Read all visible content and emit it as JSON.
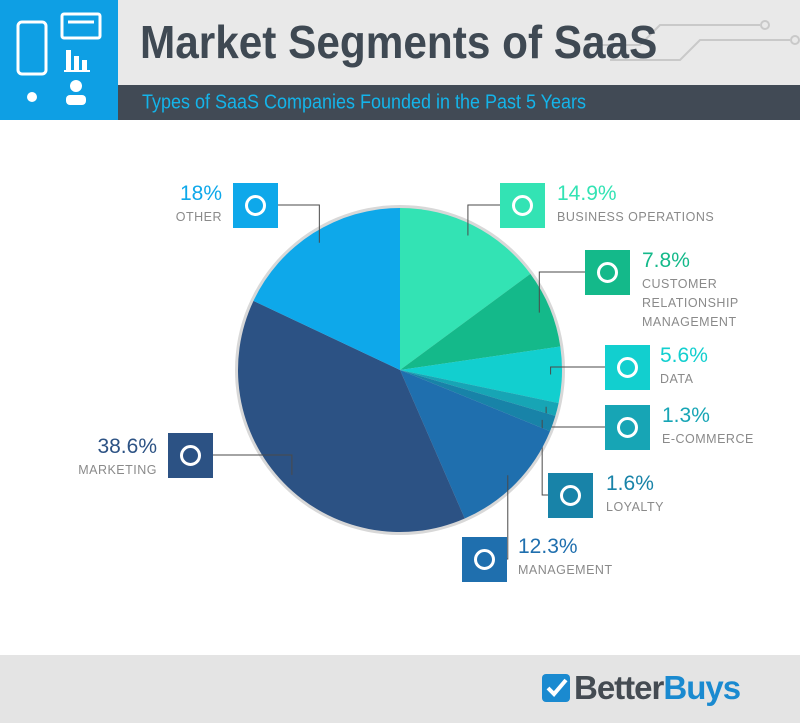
{
  "header": {
    "title": "Market Segments of SaaS",
    "subtitle": "Types of SaaS Companies Founded in the Past 5 Years"
  },
  "chart_data": {
    "type": "pie",
    "categories": [
      "BUSINESS OPERATIONS",
      "CUSTOMER RELATIONSHIP MANAGEMENT",
      "DATA",
      "E-COMMERCE",
      "LOYALTY",
      "MANAGEMENT",
      "MARKETING",
      "OTHER"
    ],
    "values": [
      14.9,
      7.8,
      5.6,
      1.3,
      1.6,
      12.3,
      38.6,
      18
    ],
    "value_labels": [
      "14.9%",
      "7.8%",
      "5.6%",
      "1.3%",
      "1.6%",
      "12.3%",
      "38.6%",
      "18%"
    ],
    "colors": [
      "#33e3b4",
      "#14b98a",
      "#12cfcf",
      "#17a5b5",
      "#1883a8",
      "#1f6fae",
      "#2c5284",
      "#0ea8ea"
    ]
  },
  "footer": {
    "brand": [
      "Better",
      "Buys"
    ]
  }
}
